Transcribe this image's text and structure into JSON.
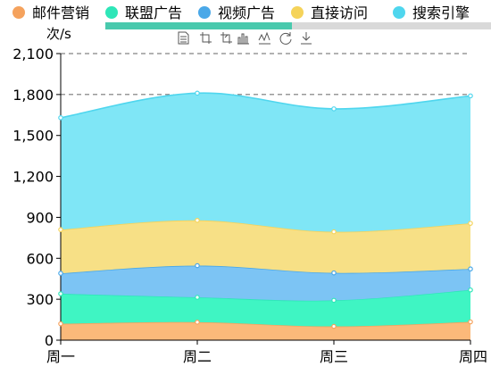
{
  "chart_data": {
    "type": "area",
    "stacked": true,
    "smooth": true,
    "unit_label": "次/s",
    "categories": [
      "周一",
      "周二",
      "周三",
      "周四"
    ],
    "ylim": [
      0,
      2100
    ],
    "yticks": [
      0,
      300,
      600,
      900,
      1200,
      1500,
      1800,
      2100
    ],
    "ytick_labels": [
      "0",
      "300",
      "600",
      "900",
      "1,200",
      "1,500",
      "1,800",
      "2,100"
    ],
    "grid": "horizontal dashed",
    "legend_position": "top",
    "series": [
      {
        "name": "邮件营销",
        "values": [
          120,
          132,
          101,
          134
        ],
        "color": "#f5a25d",
        "fill": "#fbb97a"
      },
      {
        "name": "联盟广告",
        "values": [
          220,
          182,
          191,
          234
        ],
        "color": "#2ee6b8",
        "fill": "#3ff5c3"
      },
      {
        "name": "视频广告",
        "values": [
          150,
          232,
          201,
          154
        ],
        "color": "#4aa8e8",
        "fill": "#7cc4f4"
      },
      {
        "name": "直接访问",
        "values": [
          320,
          332,
          301,
          334
        ],
        "color": "#f5d35a",
        "fill": "#f7e086"
      },
      {
        "name": "搜索引擎",
        "values": [
          820,
          932,
          901,
          934
        ],
        "color": "#4fd6ee",
        "fill": "#7fe6f6"
      }
    ]
  },
  "toolbar": {
    "icons": [
      "data-view-icon",
      "zoom-icon",
      "zoom-reset-icon",
      "bar-chart-icon",
      "line-chart-icon",
      "restore-icon",
      "download-icon"
    ]
  }
}
